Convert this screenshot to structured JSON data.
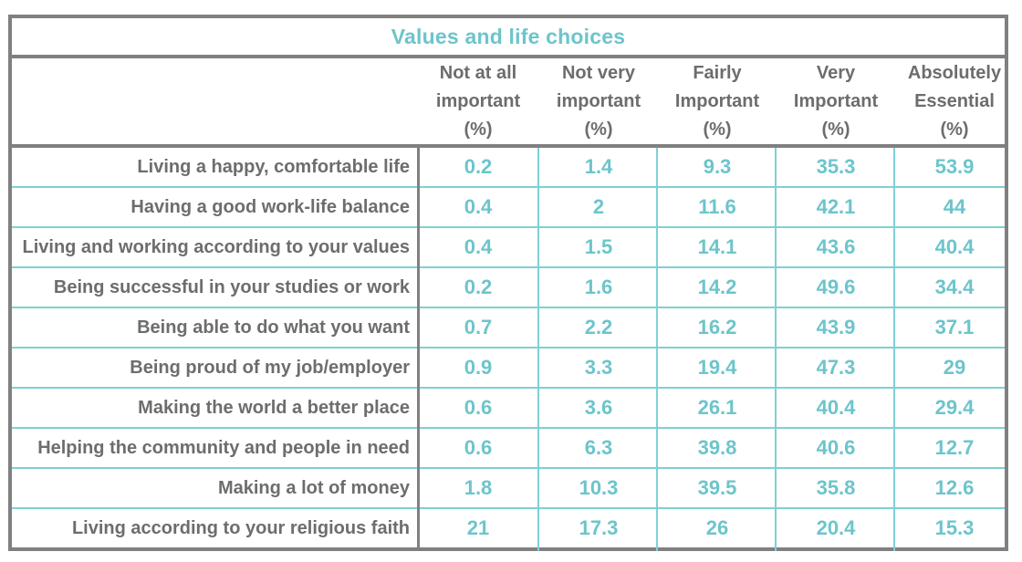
{
  "chart_data": {
    "type": "table",
    "title": "Values and life choices",
    "columns": [
      [
        "Not at all",
        "important",
        "(%)"
      ],
      [
        "Not very",
        "important",
        "(%)"
      ],
      [
        "Fairly",
        "Important",
        "(%)"
      ],
      [
        "Very",
        "Important",
        "(%)"
      ],
      [
        "Absolutely",
        "Essential",
        "(%)"
      ]
    ],
    "rows": [
      {
        "label": "Living a happy, comfortable life",
        "values": [
          "0.2",
          "1.4",
          "9.3",
          "35.3",
          "53.9"
        ]
      },
      {
        "label": "Having a good work-life balance",
        "values": [
          "0.4",
          "2",
          "11.6",
          "42.1",
          "44"
        ]
      },
      {
        "label": "Living and working according to your values",
        "values": [
          "0.4",
          "1.5",
          "14.1",
          "43.6",
          "40.4"
        ]
      },
      {
        "label": "Being successful in your studies or work",
        "values": [
          "0.2",
          "1.6",
          "14.2",
          "49.6",
          "34.4"
        ]
      },
      {
        "label": "Being able to do what you want",
        "values": [
          "0.7",
          "2.2",
          "16.2",
          "43.9",
          "37.1"
        ]
      },
      {
        "label": "Being proud of my job/employer",
        "values": [
          "0.9",
          "3.3",
          "19.4",
          "47.3",
          "29"
        ]
      },
      {
        "label": "Making the world a better place",
        "values": [
          "0.6",
          "3.6",
          "26.1",
          "40.4",
          "29.4"
        ]
      },
      {
        "label": "Helping the community and people in need",
        "values": [
          "0.6",
          "6.3",
          "39.8",
          "40.6",
          "12.7"
        ]
      },
      {
        "label": "Making a lot of money",
        "values": [
          "1.8",
          "10.3",
          "39.5",
          "35.8",
          "12.6"
        ]
      },
      {
        "label": "Living according to your religious faith",
        "values": [
          "21",
          "17.3",
          "26",
          "20.4",
          "15.3"
        ]
      }
    ],
    "colors": {
      "value": "#6cc5cb",
      "label": "#6d6d6d",
      "border": "#808080",
      "grid": "#7fd0d5"
    }
  }
}
